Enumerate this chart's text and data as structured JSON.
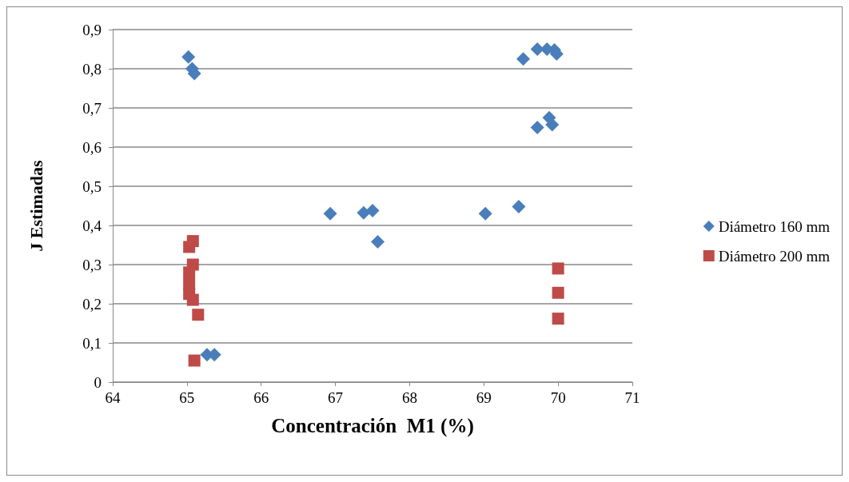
{
  "chart_data": {
    "type": "scatter",
    "xlabel": "Concentración  M1 (%)",
    "ylabel": "J Estimadas",
    "xlim": [
      64,
      71
    ],
    "xticks": [
      64,
      65,
      66,
      67,
      68,
      69,
      70,
      71
    ],
    "ylim": [
      0,
      0.9
    ],
    "yticks": [
      0,
      {
        "value": 0.1,
        "label": "0,1"
      },
      {
        "value": 0.2,
        "label": "0,2"
      },
      {
        "value": 0.3,
        "label": "0,3"
      },
      {
        "value": 0.4,
        "label": "0,4"
      },
      {
        "value": 0.5,
        "label": "0,5"
      },
      {
        "value": 0.6,
        "label": "0,6"
      },
      {
        "value": 0.7,
        "label": "0,7"
      },
      {
        "value": 0.8,
        "label": "0,8"
      },
      {
        "value": 0.9,
        "label": "0,9"
      }
    ],
    "grid": "y",
    "legend": "right",
    "series": [
      {
        "name": "Diámetro 160 mm",
        "color": "#4a7ebb",
        "marker": "diamond",
        "x": [
          65.02,
          65.07,
          65.1,
          65.27,
          65.37,
          66.93,
          67.38,
          67.5,
          67.57,
          69.02,
          69.47,
          69.53,
          69.72,
          69.85,
          69.95,
          69.98,
          69.72,
          69.88,
          69.92
        ],
        "values": [
          0.83,
          0.8,
          0.788,
          0.07,
          0.07,
          0.43,
          0.432,
          0.438,
          0.358,
          0.43,
          0.448,
          0.825,
          0.85,
          0.85,
          0.848,
          0.838,
          0.65,
          0.675,
          0.657
        ]
      },
      {
        "name": "Diámetro 200 mm",
        "color": "#be4b48",
        "marker": "square",
        "x": [
          65.08,
          65.03,
          65.08,
          65.03,
          65.03,
          65.03,
          65.08,
          65.15,
          65.1,
          70,
          70,
          70
        ],
        "values": [
          0.36,
          0.345,
          0.3,
          0.28,
          0.25,
          0.225,
          0.21,
          0.172,
          0.055,
          0.29,
          0.228,
          0.162
        ]
      }
    ]
  }
}
